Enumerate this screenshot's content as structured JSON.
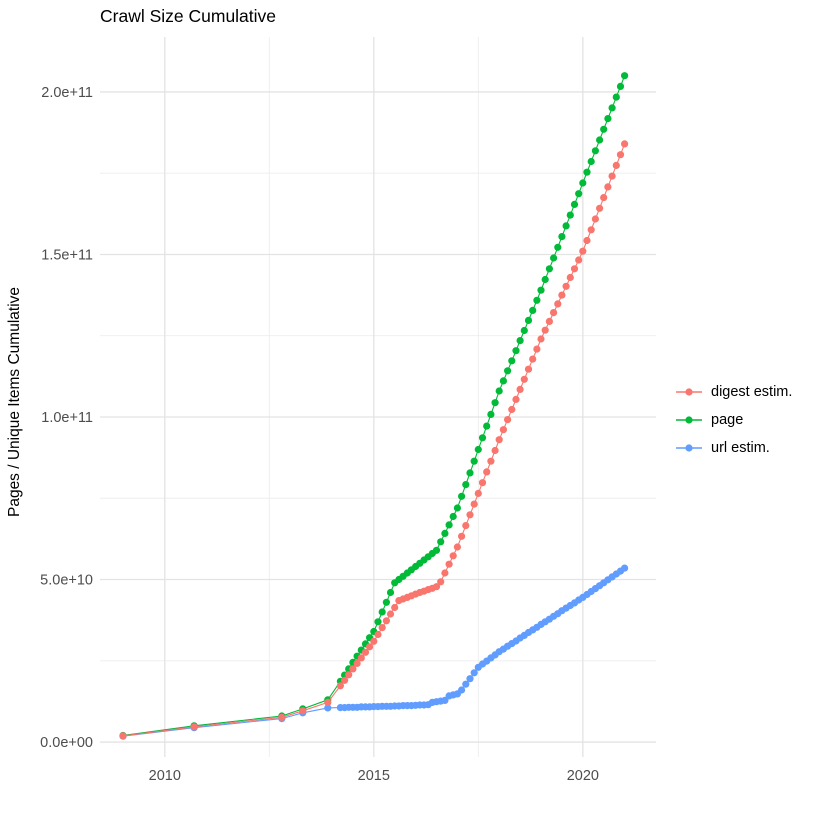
{
  "chart_data": {
    "type": "scatter",
    "title": "Crawl Size Cumulative",
    "xlabel": "",
    "ylabel": "Pages / Unique Items Cumulative",
    "background": "#FFFFFF",
    "grid": true,
    "legend_position": "right",
    "xlim": [
      2008.45,
      2021.75
    ],
    "x_ticks": [
      2010,
      2015,
      2020
    ],
    "x_tick_labels": [
      "2010",
      "2015",
      "2020"
    ],
    "x_minor_ticks": [
      2012.5,
      2017.5
    ],
    "y_scale": 1000000000.0,
    "ylim_e9": [
      -4.6,
      216.9
    ],
    "y_tick_values_e9": [
      0,
      50,
      100,
      150,
      200
    ],
    "y_tick_labels": [
      "0.0e+00",
      "5.0e+10",
      "1.0e+11",
      "1.5e+11",
      "2.0e+11"
    ],
    "y_minor_ticks_e9": [
      25,
      75,
      125,
      175
    ],
    "x": [
      2009.0,
      2010.7,
      2012.8,
      2013.3,
      2013.9,
      2014.2,
      2014.3,
      2014.4,
      2014.5,
      2014.6,
      2014.7,
      2014.8,
      2014.9,
      2015.0,
      2015.1,
      2015.2,
      2015.3,
      2015.4,
      2015.5,
      2015.6,
      2015.7,
      2015.8,
      2015.9,
      2016.0,
      2016.1,
      2016.2,
      2016.3,
      2016.4,
      2016.5,
      2016.6,
      2016.7,
      2016.8,
      2016.9,
      2017.0,
      2017.1,
      2017.2,
      2017.3,
      2017.4,
      2017.5,
      2017.6,
      2017.7,
      2017.8,
      2017.9,
      2018.0,
      2018.1,
      2018.2,
      2018.3,
      2018.4,
      2018.5,
      2018.6,
      2018.7,
      2018.8,
      2018.9,
      2019.0,
      2019.1,
      2019.2,
      2019.3,
      2019.4,
      2019.5,
      2019.6,
      2019.7,
      2019.8,
      2019.9,
      2020.0,
      2020.1,
      2020.2,
      2020.3,
      2020.4,
      2020.5,
      2020.6,
      2020.7,
      2020.8,
      2020.9,
      2021.0
    ],
    "series": [
      {
        "name": "digest estim.",
        "color": "#F8766D",
        "values_e9": [
          1.9,
          4.7,
          7.6,
          9.6,
          12.2,
          17.3,
          19.0,
          20.7,
          22.5,
          24.2,
          25.9,
          27.6,
          29.3,
          31.0,
          33.1,
          35.2,
          37.3,
          39.4,
          41.4,
          43.5,
          44.0,
          44.5,
          45.0,
          45.5,
          46.0,
          46.4,
          46.9,
          47.3,
          47.8,
          49.3,
          52.0,
          54.7,
          57.3,
          60.0,
          63.3,
          66.6,
          69.9,
          73.2,
          76.5,
          79.8,
          83.1,
          86.4,
          89.7,
          93.0,
          96.1,
          99.2,
          102.3,
          105.4,
          108.5,
          111.6,
          114.7,
          117.8,
          120.9,
          124.0,
          126.7,
          129.4,
          132.1,
          134.8,
          137.5,
          140.2,
          142.9,
          145.6,
          148.3,
          151.0,
          154.3,
          157.6,
          160.9,
          164.2,
          167.5,
          170.8,
          174.1,
          177.4,
          180.7,
          184.0
        ]
      },
      {
        "name": "page",
        "color": "#00BA38",
        "values_e9": [
          2.0,
          5.0,
          8.0,
          10.2,
          13.0,
          18.7,
          20.6,
          22.5,
          24.5,
          26.4,
          28.3,
          30.2,
          32.1,
          34.0,
          37.0,
          40.0,
          43.0,
          46.0,
          49.0,
          50.0,
          51.0,
          52.0,
          53.0,
          54.0,
          55.0,
          56.0,
          57.0,
          58.0,
          59.0,
          61.6,
          64.2,
          66.8,
          69.4,
          72.0,
          75.6,
          79.2,
          82.8,
          86.4,
          90.0,
          93.6,
          97.2,
          100.8,
          104.4,
          108.0,
          111.1,
          114.2,
          117.3,
          120.4,
          123.5,
          126.6,
          129.7,
          132.8,
          135.9,
          139.0,
          142.3,
          145.6,
          148.9,
          152.2,
          155.5,
          158.8,
          162.1,
          165.4,
          168.7,
          172.0,
          175.3,
          178.6,
          181.9,
          185.2,
          188.5,
          191.8,
          195.1,
          198.4,
          201.7,
          205.0
        ]
      },
      {
        "name": "url estim.",
        "color": "#619CFF",
        "values_e9": [
          1.8,
          4.4,
          7.2,
          9.0,
          10.5,
          10.6,
          10.6,
          10.7,
          10.7,
          10.7,
          10.8,
          10.8,
          10.8,
          10.9,
          10.9,
          11.0,
          11.0,
          11.0,
          11.1,
          11.1,
          11.2,
          11.2,
          11.2,
          11.3,
          11.4,
          11.4,
          11.5,
          12.2,
          12.4,
          12.6,
          12.8,
          14.2,
          14.5,
          14.8,
          16.0,
          17.8,
          19.5,
          21.3,
          23.0,
          24.0,
          24.9,
          25.9,
          26.8,
          27.8,
          28.6,
          29.5,
          30.3,
          31.1,
          32.0,
          32.8,
          33.7,
          34.5,
          35.3,
          36.2,
          37.0,
          37.8,
          38.7,
          39.5,
          40.4,
          41.2,
          42.0,
          42.8,
          43.7,
          44.5,
          45.4,
          46.3,
          47.2,
          48.1,
          49.0,
          49.9,
          50.8,
          51.7,
          52.6,
          53.5
        ]
      }
    ]
  },
  "colors": {
    "grid_major": "#E3E3E3",
    "grid_minor": "#EDEDED",
    "tick_label": "#4D4D4D"
  }
}
